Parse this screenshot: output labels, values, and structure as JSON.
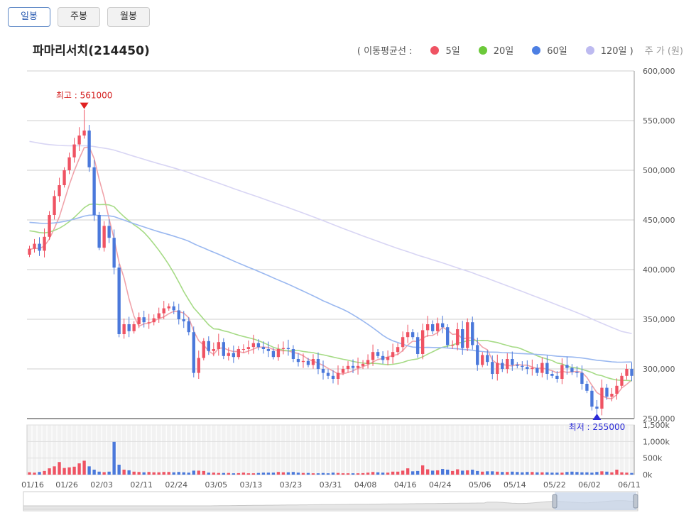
{
  "tabs": [
    "일봉",
    "주봉",
    "월봉"
  ],
  "stock": {
    "title": "파마리서치(214450)"
  },
  "legend": {
    "prefix": "( 이동평균선  :",
    "items": [
      {
        "label": "5일",
        "color": "#ef5363"
      },
      {
        "label": "20일",
        "color": "#6cc93a"
      },
      {
        "label": "60일",
        "color": "#4d7fe3"
      },
      {
        "label": "120일 )",
        "color": "#bdbaf0"
      }
    ],
    "unit": "주 가 (원)"
  },
  "chart_data": {
    "type": "candlestick",
    "x_labels": [
      "01/16",
      "01/26",
      "02/03",
      "02/11",
      "02/24",
      "03/05",
      "03/13",
      "03/23",
      "03/31",
      "04/08",
      "04/16",
      "04/24",
      "05/06",
      "05/14",
      "05/22",
      "06/02",
      "06/11"
    ],
    "price_ticks": [
      "600,000",
      "550,000",
      "500,000",
      "450,000",
      "400,000",
      "350,000",
      "300,000",
      "250,000"
    ],
    "ylim": [
      250000,
      600000
    ],
    "volume_ticks": [
      "1,500k",
      "1,000k",
      "500k",
      "0k"
    ],
    "volume_ylim": [
      0,
      1500000
    ],
    "high_label": "최고 : 561000",
    "high_index": 11,
    "high_value": 561000,
    "low_label": "최저 : 255000",
    "low_index": 114,
    "low_value": 255000,
    "colors": {
      "up": "#ef5363",
      "down": "#4a78db",
      "ma5": "#f0a3aa",
      "ma20": "#a6db86",
      "ma60": "#9ab8f0",
      "ma120": "#d8d5f4"
    },
    "closes": [
      421000,
      426000,
      419000,
      433000,
      455000,
      474000,
      485000,
      500000,
      513000,
      526000,
      535000,
      540000,
      503000,
      455000,
      422000,
      444000,
      432000,
      402000,
      335000,
      345000,
      338000,
      345000,
      352000,
      347000,
      347000,
      351000,
      356000,
      361000,
      363000,
      359000,
      350000,
      348000,
      337000,
      296000,
      311000,
      328000,
      318000,
      320000,
      327000,
      313000,
      316000,
      312000,
      320000,
      320000,
      322000,
      326000,
      322000,
      320000,
      318000,
      312000,
      320000,
      321000,
      320000,
      310000,
      307000,
      308000,
      304000,
      310000,
      300000,
      296000,
      293000,
      290000,
      296000,
      300000,
      303000,
      301000,
      303000,
      305000,
      309000,
      317000,
      313000,
      309000,
      312000,
      317000,
      322000,
      332000,
      337000,
      332000,
      315000,
      339000,
      345000,
      338000,
      346000,
      342000,
      324000,
      324000,
      340000,
      321000,
      347000,
      324000,
      304000,
      314000,
      307000,
      295000,
      306000,
      300000,
      310000,
      304000,
      303000,
      302000,
      300000,
      301000,
      296000,
      306000,
      295000,
      293000,
      290000,
      304000,
      301000,
      297000,
      296000,
      285000,
      278000,
      262000,
      260000,
      281000,
      272000,
      275000,
      283000,
      293000,
      300000,
      293000
    ],
    "volumes": [
      72000,
      60000,
      80000,
      110000,
      190000,
      250000,
      380000,
      200000,
      220000,
      240000,
      340000,
      420000,
      250000,
      150000,
      90000,
      75000,
      90000,
      990000,
      300000,
      150000,
      130000,
      90000,
      80000,
      70000,
      80000,
      70000,
      70000,
      80000,
      80000,
      70000,
      80000,
      70000,
      60000,
      120000,
      120000,
      110000,
      60000,
      60000,
      50000,
      50000,
      50000,
      40000,
      45000,
      60000,
      40000,
      40000,
      50000,
      60000,
      60000,
      60000,
      80000,
      70000,
      70000,
      80000,
      60000,
      50000,
      50000,
      40000,
      40000,
      50000,
      40000,
      60000,
      50000,
      40000,
      40000,
      40000,
      40000,
      45000,
      60000,
      80000,
      70000,
      60000,
      60000,
      90000,
      90000,
      120000,
      190000,
      100000,
      110000,
      280000,
      160000,
      120000,
      130000,
      170000,
      150000,
      110000,
      160000,
      120000,
      130000,
      150000,
      110000,
      90000,
      100000,
      100000,
      90000,
      80000,
      80000,
      90000,
      80000,
      70000,
      80000,
      80000,
      70000,
      70000,
      70000,
      60000,
      60000,
      60000,
      80000,
      90000,
      80000,
      70000,
      70000,
      60000,
      80000,
      100000,
      90000,
      70000,
      150000,
      70000,
      60000,
      50000
    ],
    "ma_start": [
      420000,
      440000,
      448000,
      530000
    ],
    "series_names": [
      "5일",
      "20일",
      "60일",
      "120일"
    ]
  }
}
